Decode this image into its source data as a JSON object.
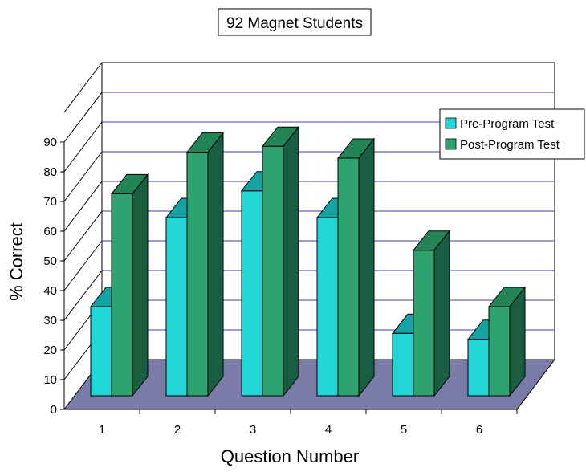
{
  "chart_data": {
    "type": "bar",
    "title": "92 Magnet Students",
    "xlabel": "Question Number",
    "ylabel": "% Correct",
    "categories": [
      "1",
      "2",
      "3",
      "4",
      "5",
      "6"
    ],
    "ylim": [
      0,
      90
    ],
    "yticks": [
      "0",
      "10",
      "20",
      "30",
      "40",
      "50",
      "60",
      "70",
      "80",
      "90"
    ],
    "grid": true,
    "three_d": true,
    "legend_position": "right",
    "series": [
      {
        "name": "Pre-Program Test",
        "values": [
          30,
          60,
          69,
          60,
          21,
          19
        ],
        "color": "#22d6d6",
        "top_color": "#14a3a3",
        "side_color": "#0e8080"
      },
      {
        "name": "Post-Program Test",
        "values": [
          68,
          82,
          84,
          80,
          49,
          30
        ],
        "color": "#2fa36f",
        "top_color": "#238556",
        "side_color": "#1a5e42"
      }
    ],
    "floor_color": "#7b7ba8",
    "gridline_color": "#4040a0"
  }
}
